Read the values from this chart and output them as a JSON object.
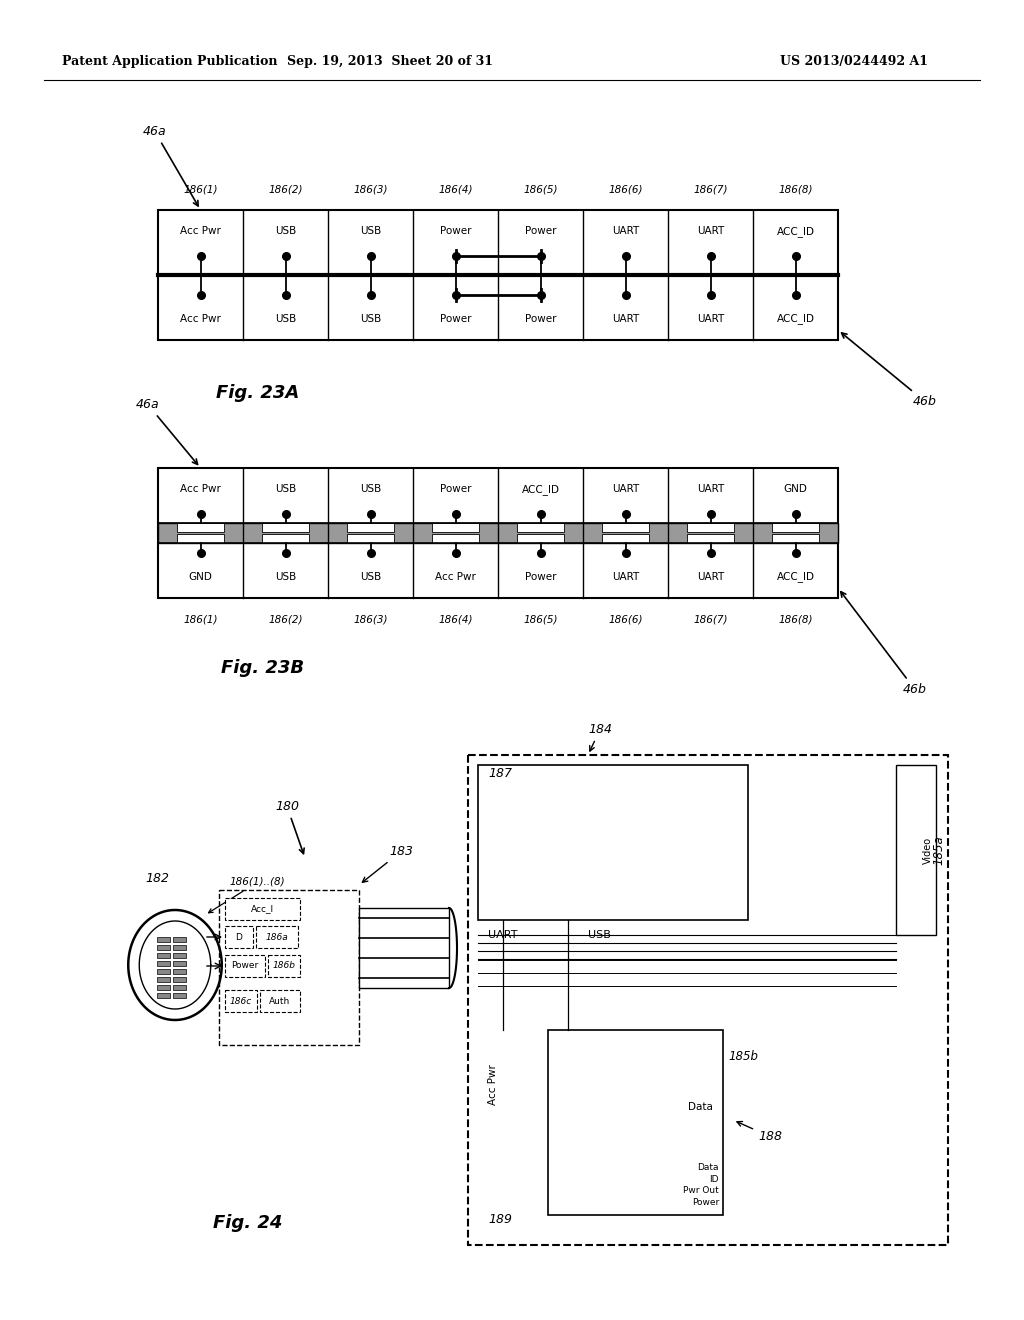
{
  "bg_color": "#ffffff",
  "lc": "#000000",
  "header_left": "Patent Application Publication",
  "header_center": "Sep. 19, 2013  Sheet 20 of 31",
  "header_right": "US 2013/0244492 A1",
  "fig23A_label": "Fig. 23A",
  "fig23B_label": "Fig. 23B",
  "fig24_label": "Fig. 24",
  "fig23A_top_row": [
    "Acc Pwr",
    "USB",
    "USB",
    "Power",
    "Power",
    "UART",
    "UART",
    "ACC_ID"
  ],
  "fig23A_bot_row": [
    "Acc Pwr",
    "USB",
    "USB",
    "Power",
    "Power",
    "UART",
    "UART",
    "ACC_ID"
  ],
  "fig23B_top_row": [
    "Acc Pwr",
    "USB",
    "USB",
    "Power",
    "ACC_ID",
    "UART",
    "UART",
    "GND"
  ],
  "fig23B_bot_row": [
    "GND",
    "USB",
    "USB",
    "Acc Pwr",
    "Power",
    "UART",
    "UART",
    "ACC_ID"
  ],
  "pin_labels": [
    "186(1)",
    "186(2)",
    "186(3)",
    "186(4)",
    "186(5)",
    "186(6)",
    "186(7)",
    "186(8)"
  ]
}
